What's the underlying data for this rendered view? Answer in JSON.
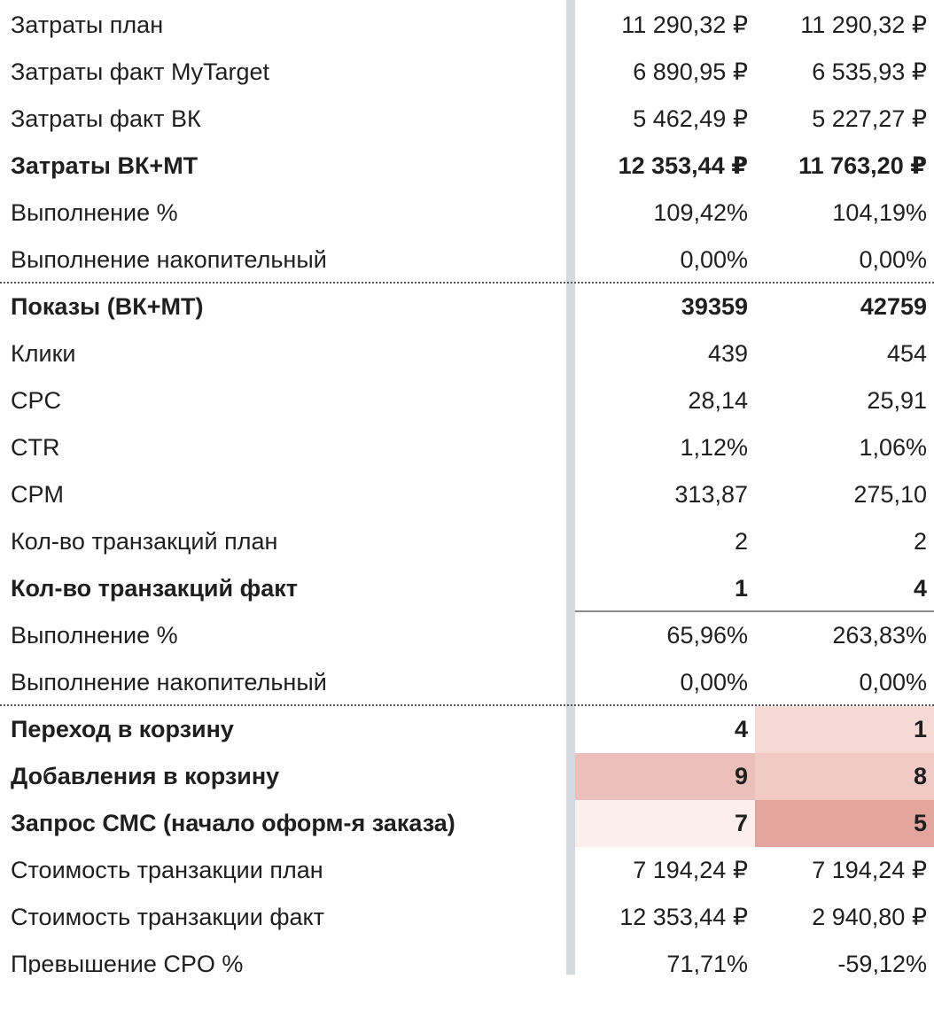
{
  "rows": [
    {
      "label": "Затраты план",
      "v1": "11 290,32 ₽",
      "v2": "11 290,32 ₽",
      "bold": false
    },
    {
      "label": "Затраты факт MyTarget",
      "v1": "6 890,95 ₽",
      "v2": "6 535,93 ₽",
      "bold": false
    },
    {
      "label": "Затраты факт ВК",
      "v1": "5 462,49 ₽",
      "v2": "5 227,27 ₽",
      "bold": false
    },
    {
      "label": "Затраты ВК+МТ",
      "v1": "12 353,44 ₽",
      "v2": "11 763,20 ₽",
      "bold": true
    },
    {
      "label": "Выполнение %",
      "v1": "109,42%",
      "v2": "104,19%",
      "bold": false
    },
    {
      "label": "Выполнение накопительный",
      "v1": "0,00%",
      "v2": "0,00%",
      "bold": false
    },
    {
      "label": "Показы (ВК+МТ)",
      "v1": "39359",
      "v2": "42759",
      "bold": true
    },
    {
      "label": "Клики",
      "v1": "439",
      "v2": "454",
      "bold": false
    },
    {
      "label": "CPC",
      "v1": "28,14",
      "v2": "25,91",
      "bold": false
    },
    {
      "label": "CTR",
      "v1": "1,12%",
      "v2": "1,06%",
      "bold": false
    },
    {
      "label": "CPM",
      "v1": "313,87",
      "v2": "275,10",
      "bold": false
    },
    {
      "label": "Кол-во транзакций план",
      "v1": "2",
      "v2": "2",
      "bold": false
    },
    {
      "label": "Кол-во транзакций факт",
      "v1": "1",
      "v2": "4",
      "bold": true
    },
    {
      "label": "Выполнение %",
      "v1": "65,96%",
      "v2": "263,83%",
      "bold": false
    },
    {
      "label": "Выполнение накопительный",
      "v1": "0,00%",
      "v2": "0,00%",
      "bold": false
    },
    {
      "label": "Переход в корзину",
      "v1": "4",
      "v2": "1",
      "bold": true
    },
    {
      "label": "Добавления в корзину",
      "v1": "9",
      "v2": "8",
      "bold": true
    },
    {
      "label": "Запрос СМС (начало оформ-я заказа)",
      "v1": "7",
      "v2": "5",
      "bold": true
    },
    {
      "label": "Стоимость транзакции план",
      "v1": "7 194,24 ₽",
      "v2": "7 194,24 ₽",
      "bold": false
    },
    {
      "label": "Стоимость транзакции факт",
      "v1": "12 353,44 ₽",
      "v2": "2 940,80 ₽",
      "bold": false
    },
    {
      "label": "Превышение CPO %",
      "v1": "71,71%",
      "v2": "-59,12%",
      "bold": false
    }
  ],
  "colors": {
    "grid_divider": "#d5d9e0",
    "heat_faint": "#fbeeec",
    "heat_light": "#f5d9d5",
    "heat_mid": "#f2cac5",
    "heat_strong": "#ecc0ba",
    "heat_dark": "#e4a59e"
  }
}
